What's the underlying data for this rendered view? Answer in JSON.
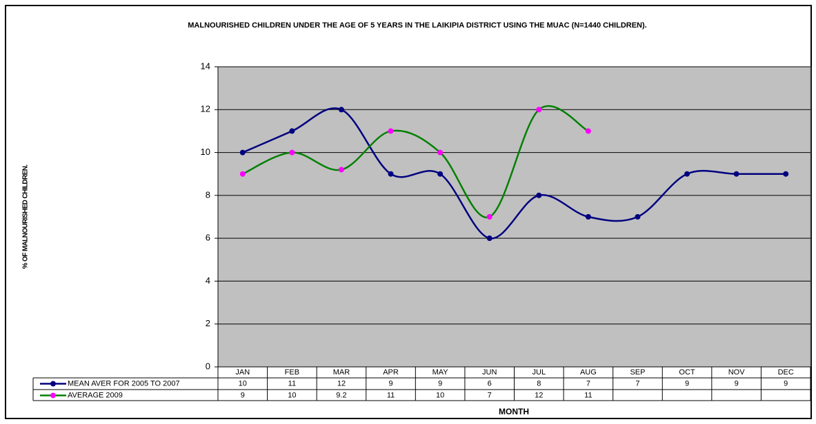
{
  "chart_data": {
    "type": "line",
    "title": "MALNOURISHED CHILDREN UNDER THE AGE OF 5 YEARS IN THE LAIKIPIA DISTRICT USING THE MUAC  (N=1440 CHILDREN).",
    "xlabel": "MONTH",
    "ylabel": "% OF MALNOURISHED CHILDREN.",
    "categories": [
      "JAN",
      "FEB",
      "MAR",
      "APR",
      "MAY",
      "JUN",
      "JUL",
      "AUG",
      "SEP",
      "OCT",
      "NOV",
      "DEC"
    ],
    "series": [
      {
        "name": "MEAN AVER FOR 2005 TO 2007",
        "color": "#000080",
        "marker_color": "#000080",
        "values": [
          10,
          11,
          12,
          9,
          9,
          6,
          8,
          7,
          7,
          9,
          9,
          9
        ]
      },
      {
        "name": "AVERAGE 2009",
        "color": "#008000",
        "marker_color": "#FF00FF",
        "values": [
          9,
          10,
          9.2,
          11,
          10,
          7,
          12,
          11,
          null,
          null,
          null,
          null
        ]
      }
    ],
    "ylim": [
      0,
      14
    ],
    "yticks": [
      0,
      2,
      4,
      6,
      8,
      10,
      12,
      14
    ],
    "grid": true,
    "smooth": true,
    "plot_background": "#C0C0C0"
  }
}
